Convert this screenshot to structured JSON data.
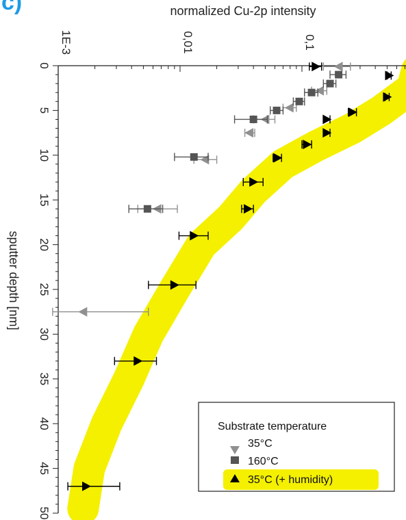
{
  "panel_label": "c)",
  "chart_data": {
    "type": "scatter",
    "title": "normalized Cu-2p intensity",
    "xlabel": "normalized Cu-2p intensity",
    "ylabel": "sputter depth [nm]",
    "x_scale": "log",
    "x_range": [
      0.001,
      1
    ],
    "y_range": [
      0,
      50
    ],
    "x_tick_values": [
      0.001,
      0.01,
      0.1
    ],
    "x_tick_labels": [
      "1E-3",
      "0,01",
      "0,1"
    ],
    "y_tick_values": [
      0,
      5,
      10,
      15,
      20,
      25,
      30,
      35,
      40,
      45,
      50
    ],
    "y_tick_labels": [
      "0",
      "5",
      "10",
      "15",
      "20",
      "25",
      "30",
      "35",
      "40",
      "45",
      "50"
    ],
    "legend": {
      "title": "Substrate temperature",
      "position": "bottom-right",
      "entries": [
        "35°C",
        "160°C",
        "35°C (+ humidity)"
      ]
    },
    "highlight_color": "#f4f000",
    "series": [
      {
        "name": "35°C",
        "marker": "triangle-left",
        "color": "#909090",
        "points": [
          {
            "x": 0.2,
            "y": 0.1,
            "xmin": 0.15,
            "xmax": 0.25
          },
          {
            "x": 0.14,
            "y": 2.8,
            "xmin": 0.12,
            "xmax": 0.16
          },
          {
            "x": 0.079,
            "y": 4.7,
            "xmin": 0.07,
            "xmax": 0.09
          },
          {
            "x": 0.05,
            "y": 6.0,
            "xmin": 0.04,
            "xmax": 0.06
          },
          {
            "x": 0.037,
            "y": 7.5,
            "xmin": 0.034,
            "xmax": 0.041
          },
          {
            "x": 0.016,
            "y": 10.5,
            "xmin": 0.013,
            "xmax": 0.02
          },
          {
            "x": 0.0065,
            "y": 16.0,
            "xmin": 0.0045,
            "xmax": 0.0095
          },
          {
            "x": 0.0016,
            "y": 27.5,
            "xmin": 0.0009,
            "xmax": 0.0055
          }
        ]
      },
      {
        "name": "160°C",
        "marker": "square",
        "color": "#555555",
        "points": [
          {
            "x": 0.2,
            "y": 1.0,
            "xmin": 0.17,
            "xmax": 0.23
          },
          {
            "x": 0.17,
            "y": 2.0,
            "xmin": 0.15,
            "xmax": 0.19
          },
          {
            "x": 0.12,
            "y": 3.0,
            "xmin": 0.105,
            "xmax": 0.135
          },
          {
            "x": 0.095,
            "y": 4.0,
            "xmin": 0.085,
            "xmax": 0.105
          },
          {
            "x": 0.062,
            "y": 5.0,
            "xmin": 0.055,
            "xmax": 0.07
          },
          {
            "x": 0.04,
            "y": 6.0,
            "xmin": 0.028,
            "xmax": 0.052
          },
          {
            "x": 0.013,
            "y": 10.2,
            "xmin": 0.009,
            "xmax": 0.017
          },
          {
            "x": 0.0054,
            "y": 16.0,
            "xmin": 0.0038,
            "xmax": 0.0072
          }
        ]
      },
      {
        "name": "35°C (+ humidity)",
        "marker": "triangle-right",
        "color": "#000000",
        "points": [
          {
            "x": 0.13,
            "y": 0.1,
            "xmin": 0.115,
            "xmax": 0.145
          },
          {
            "x": 0.52,
            "y": 1.1,
            "xmin": 0.5,
            "xmax": 0.54
          },
          {
            "x": 0.83,
            "y": 2.3,
            "xmin": 0.8,
            "xmax": 0.86
          },
          {
            "x": 0.5,
            "y": 3.5,
            "xmin": 0.48,
            "xmax": 0.52
          },
          {
            "x": 0.26,
            "y": 5.2,
            "xmin": 0.24,
            "xmax": 0.28
          },
          {
            "x": 0.16,
            "y": 6.0,
            "xmin": 0.15,
            "xmax": 0.17
          },
          {
            "x": 0.16,
            "y": 7.5,
            "xmin": 0.15,
            "xmax": 0.17
          },
          {
            "x": 0.11,
            "y": 8.8,
            "xmin": 0.1,
            "xmax": 0.12
          },
          {
            "x": 0.063,
            "y": 10.3,
            "xmin": 0.058,
            "xmax": 0.068
          },
          {
            "x": 0.04,
            "y": 13.0,
            "xmin": 0.033,
            "xmax": 0.048
          },
          {
            "x": 0.036,
            "y": 16.0,
            "xmin": 0.032,
            "xmax": 0.04
          },
          {
            "x": 0.013,
            "y": 19.0,
            "xmin": 0.0098,
            "xmax": 0.017
          },
          {
            "x": 0.009,
            "y": 24.5,
            "xmin": 0.0055,
            "xmax": 0.0135
          },
          {
            "x": 0.0045,
            "y": 33.0,
            "xmin": 0.0029,
            "xmax": 0.0064
          },
          {
            "x": 0.0017,
            "y": 47.0,
            "xmin": 0.0012,
            "xmax": 0.0032
          }
        ]
      }
    ],
    "highlight_band": [
      {
        "x": 0.88,
        "y": 0.5
      },
      {
        "x": 0.8,
        "y": 2.5
      },
      {
        "x": 0.45,
        "y": 5.0
      },
      {
        "x": 0.26,
        "y": 7.0
      },
      {
        "x": 0.13,
        "y": 9.0
      },
      {
        "x": 0.07,
        "y": 11.0
      },
      {
        "x": 0.04,
        "y": 14.0
      },
      {
        "x": 0.026,
        "y": 17.0
      },
      {
        "x": 0.015,
        "y": 20.0
      },
      {
        "x": 0.009,
        "y": 25.0
      },
      {
        "x": 0.0055,
        "y": 30.0
      },
      {
        "x": 0.0038,
        "y": 35.0
      },
      {
        "x": 0.0025,
        "y": 40.0
      },
      {
        "x": 0.0018,
        "y": 45.0
      },
      {
        "x": 0.0016,
        "y": 49.5
      }
    ]
  }
}
